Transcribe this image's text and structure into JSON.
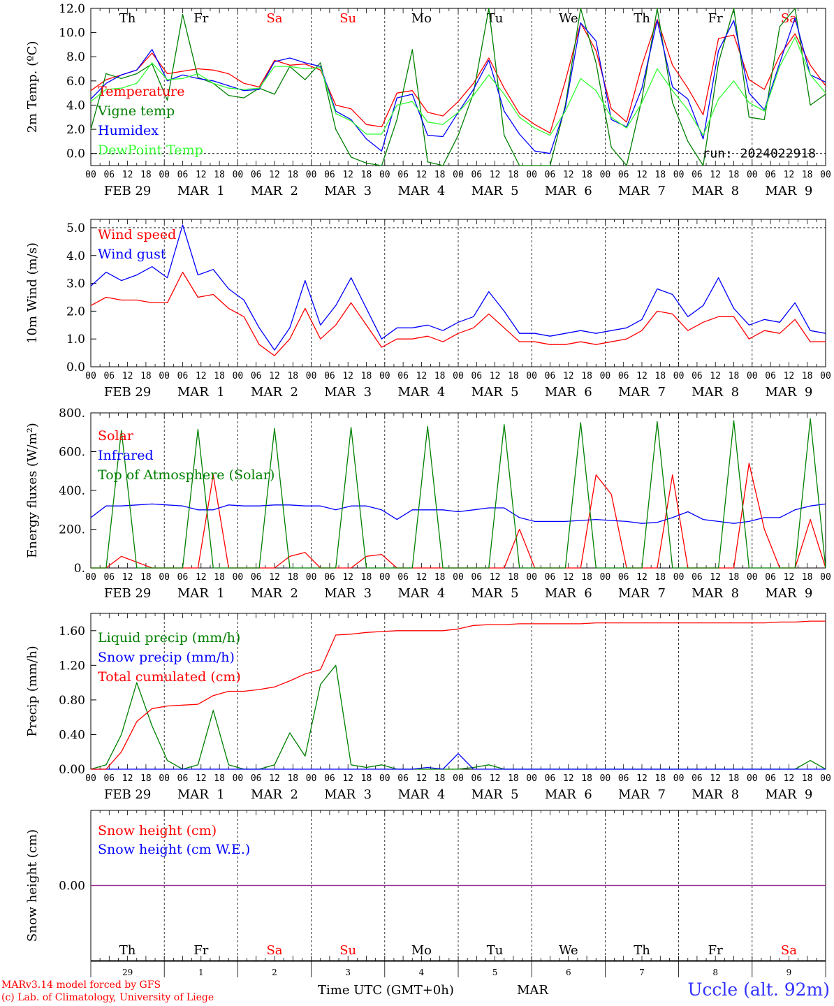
{
  "x_axis": {
    "hour_ticks": [
      "00",
      "06",
      "12",
      "18"
    ],
    "end_tick": "00",
    "date_labels": [
      "FEB 29",
      "MAR  1",
      "MAR  2",
      "MAR  3",
      "MAR  4",
      "MAR  5",
      "MAR  6",
      "MAR  7",
      "MAR  8",
      "MAR  9"
    ],
    "weekdays": [
      "Th",
      "Fr",
      "Sa",
      "Su",
      "Mo",
      "Tu",
      "We",
      "Th",
      "Fr",
      "Sa"
    ],
    "weekday_colors": [
      "#000000",
      "#000000",
      "#ff0000",
      "#ff0000",
      "#000000",
      "#000000",
      "#000000",
      "#000000",
      "#000000",
      "#ff0000"
    ],
    "bottom_day_numbers": [
      "29",
      "1",
      "2",
      "3",
      "4",
      "5",
      "6",
      "7",
      "8",
      "9"
    ],
    "bottom_month": "MAR",
    "time_label": "Time UTC (GMT+0h)"
  },
  "footer": {
    "model_line": "MARv3.14 model forced by GFS",
    "credit_line": "(c) Lab. of Climatology, University of Liege",
    "station": "Uccle (alt. 92m)"
  },
  "chart_data": [
    {
      "id": "temperature",
      "type": "line",
      "ylabel": "2m Temp. (ºC)",
      "ylim": [
        -1.0,
        12.0
      ],
      "yticks": [
        "0.0",
        "2.0",
        "4.0",
        "6.0",
        "8.0",
        "10.0",
        "12.0"
      ],
      "ytick_values": [
        0,
        2,
        4,
        6,
        8,
        10,
        12
      ],
      "run_label": "run: 2024022918",
      "dashed_ref": 0,
      "x_hours_step": 6,
      "series": [
        {
          "name": "Temperature",
          "color": "#ff0000",
          "values": [
            5.2,
            6.1,
            6.5,
            6.9,
            8.3,
            6.6,
            6.8,
            7.0,
            6.9,
            6.6,
            5.8,
            5.5,
            7.7,
            7.3,
            7.4,
            6.9,
            4.0,
            3.7,
            2.4,
            2.2,
            5.0,
            5.2,
            3.4,
            3.1,
            4.3,
            5.8,
            7.9,
            5.4,
            3.3,
            2.4,
            1.7,
            6.0,
            10.8,
            8.5,
            3.7,
            2.6,
            7.3,
            11.1,
            7.3,
            5.4,
            3.2,
            9.5,
            9.8,
            6.1,
            5.3,
            8.1,
            9.9,
            7.3,
            5.6
          ]
        },
        {
          "name": "Vigne temp",
          "color": "#008000",
          "values": [
            2.0,
            6.6,
            6.2,
            6.6,
            7.4,
            4.4,
            11.5,
            6.3,
            5.8,
            4.8,
            4.6,
            5.4,
            4.9,
            7.2,
            6.1,
            7.5,
            2.0,
            -0.3,
            -0.8,
            -1.0,
            2.8,
            8.6,
            -0.7,
            -1.0,
            1.5,
            5.0,
            12.0,
            1.5,
            -1.0,
            -1.0,
            -1.0,
            4.0,
            12.0,
            7.5,
            0.5,
            -1.0,
            4.5,
            12.0,
            4.2,
            1.0,
            -1.0,
            7.5,
            12.0,
            3.0,
            2.8,
            10.5,
            12.0,
            4.0,
            4.9
          ]
        },
        {
          "name": "Humidex",
          "color": "#0000ff",
          "values": [
            4.5,
            5.8,
            6.5,
            6.9,
            8.6,
            6.0,
            6.5,
            6.2,
            6.0,
            5.6,
            5.2,
            5.3,
            7.6,
            7.9,
            7.5,
            7.2,
            3.5,
            2.8,
            1.2,
            0.2,
            4.6,
            4.9,
            1.5,
            1.4,
            3.4,
            5.3,
            7.7,
            3.5,
            1.6,
            0.2,
            0.0,
            3.8,
            10.8,
            9.3,
            2.8,
            2.2,
            5.4,
            11.0,
            5.5,
            4.5,
            1.2,
            8.5,
            11.0,
            5.0,
            3.6,
            7.5,
            11.2,
            6.5,
            5.9
          ]
        },
        {
          "name": "DewPoint Temp",
          "color": "#33ff33",
          "values": [
            4.3,
            5.3,
            5.4,
            5.8,
            7.5,
            6.1,
            6.2,
            6.6,
            5.8,
            5.4,
            5.3,
            5.4,
            7.2,
            7.2,
            7.0,
            7.1,
            3.3,
            2.7,
            1.6,
            1.6,
            4.0,
            4.3,
            2.6,
            2.4,
            3.4,
            4.8,
            6.5,
            4.9,
            3.0,
            2.1,
            1.5,
            3.5,
            6.2,
            5.2,
            3.0,
            2.1,
            4.2,
            7.0,
            5.2,
            3.6,
            1.5,
            4.5,
            6.0,
            4.2,
            3.5,
            7.2,
            9.6,
            6.5,
            5.0
          ]
        }
      ]
    },
    {
      "id": "wind",
      "type": "line",
      "ylabel": "10m Wind (m/s)",
      "ylim": [
        0.0,
        5.3
      ],
      "yticks": [
        "0.0",
        "1.0",
        "2.0",
        "3.0",
        "4.0",
        "5.0"
      ],
      "ytick_values": [
        0,
        1,
        2,
        3,
        4,
        5
      ],
      "dashed_ref": 5,
      "x_hours_step": 6,
      "series": [
        {
          "name": "Wind speed",
          "color": "#ff0000",
          "values": [
            2.2,
            2.5,
            2.4,
            2.4,
            2.3,
            2.3,
            3.4,
            2.5,
            2.6,
            2.1,
            1.8,
            0.8,
            0.4,
            1.0,
            2.1,
            1.0,
            1.5,
            2.3,
            1.5,
            0.7,
            1.0,
            1.0,
            1.1,
            0.9,
            1.2,
            1.4,
            1.9,
            1.4,
            0.9,
            0.9,
            0.8,
            0.8,
            0.9,
            0.8,
            0.9,
            1.0,
            1.3,
            2.0,
            1.9,
            1.3,
            1.6,
            1.8,
            1.8,
            1.0,
            1.3,
            1.2,
            1.7,
            0.9,
            0.9
          ]
        },
        {
          "name": "Wind gust",
          "color": "#0000ff",
          "values": [
            2.9,
            3.4,
            3.1,
            3.3,
            3.6,
            3.2,
            5.1,
            3.3,
            3.5,
            2.8,
            2.4,
            1.4,
            0.6,
            1.4,
            3.1,
            1.5,
            2.2,
            3.2,
            2.1,
            1.0,
            1.4,
            1.4,
            1.5,
            1.3,
            1.6,
            1.8,
            2.7,
            2.0,
            1.2,
            1.2,
            1.1,
            1.2,
            1.3,
            1.2,
            1.3,
            1.4,
            1.7,
            2.8,
            2.6,
            1.8,
            2.2,
            3.2,
            2.1,
            1.5,
            1.7,
            1.6,
            2.3,
            1.3,
            1.2
          ]
        }
      ]
    },
    {
      "id": "radiation",
      "type": "line",
      "ylabel": "Energy fluxes (W/m²)",
      "ylim": [
        0,
        800
      ],
      "yticks": [
        "0.",
        "200.",
        "400.",
        "600.",
        "800."
      ],
      "ytick_values": [
        0,
        200,
        400,
        600,
        800
      ],
      "x_hours_step": 6,
      "series": [
        {
          "name": "Solar",
          "color": "#ff0000",
          "values": [
            0,
            0,
            60,
            30,
            0,
            0,
            0,
            0,
            480,
            0,
            0,
            0,
            0,
            60,
            80,
            0,
            0,
            0,
            60,
            70,
            0,
            0,
            0,
            0,
            0,
            0,
            0,
            0,
            200,
            0,
            0,
            0,
            0,
            480,
            380,
            0,
            0,
            0,
            480,
            0,
            0,
            0,
            0,
            540,
            200,
            0,
            0,
            250,
            0
          ]
        },
        {
          "name": "Infrared",
          "color": "#0000ff",
          "values": [
            260,
            320,
            320,
            325,
            330,
            325,
            320,
            300,
            300,
            325,
            320,
            320,
            325,
            325,
            320,
            320,
            300,
            320,
            320,
            300,
            250,
            300,
            300,
            300,
            290,
            300,
            310,
            310,
            260,
            240,
            240,
            240,
            245,
            250,
            245,
            240,
            230,
            235,
            260,
            290,
            250,
            240,
            230,
            240,
            260,
            260,
            300,
            320,
            330
          ]
        },
        {
          "name": "Top of Atmosphere (Solar)",
          "color": "#008000",
          "values": [
            0,
            0,
            710,
            0,
            0,
            0,
            0,
            715,
            0,
            0,
            0,
            0,
            720,
            0,
            0,
            0,
            0,
            725,
            0,
            0,
            0,
            0,
            730,
            0,
            0,
            0,
            0,
            740,
            0,
            0,
            0,
            0,
            750,
            0,
            0,
            0,
            0,
            755,
            0,
            0,
            0,
            0,
            760,
            0,
            0,
            0,
            0,
            770,
            0
          ]
        }
      ]
    },
    {
      "id": "precip",
      "type": "line",
      "ylabel": "Precip (mm/h)",
      "ylim": [
        0.0,
        1.8
      ],
      "yticks": [
        "0.00",
        "0.40",
        "0.80",
        "1.20",
        "1.60"
      ],
      "ytick_values": [
        0,
        0.4,
        0.8,
        1.2,
        1.6
      ],
      "x_hours_step": 6,
      "series": [
        {
          "name": "Liquid precip (mm/h)",
          "color": "#008000",
          "values": [
            0,
            0.05,
            0.4,
            1.0,
            0.5,
            0.1,
            0,
            0.05,
            0.68,
            0.05,
            0,
            0,
            0.05,
            0.42,
            0.15,
            0.98,
            1.2,
            0.05,
            0.02,
            0.05,
            0,
            0,
            0,
            0,
            0,
            0.02,
            0.05,
            0,
            0,
            0,
            0,
            0,
            0,
            0,
            0,
            0,
            0,
            0,
            0,
            0,
            0,
            0,
            0,
            0,
            0,
            0,
            0,
            0.1,
            0
          ]
        },
        {
          "name": "Snow precip (mm/h)",
          "color": "#0000ff",
          "values": [
            0,
            0,
            0,
            0,
            0,
            0,
            0,
            0,
            0,
            0,
            0,
            0,
            0,
            0,
            0,
            0,
            0,
            0,
            0,
            0,
            0,
            0,
            0.02,
            0,
            0.18,
            0,
            0,
            0,
            0,
            0,
            0,
            0,
            0,
            0,
            0,
            0,
            0,
            0,
            0,
            0,
            0,
            0,
            0,
            0,
            0,
            0,
            0,
            0,
            0
          ]
        },
        {
          "name": "Total cumulated (cm)",
          "color": "#ff0000",
          "values": [
            0,
            0,
            0.2,
            0.55,
            0.7,
            0.73,
            0.74,
            0.75,
            0.85,
            0.9,
            0.9,
            0.92,
            0.95,
            1.02,
            1.1,
            1.15,
            1.55,
            1.56,
            1.58,
            1.59,
            1.6,
            1.6,
            1.6,
            1.6,
            1.62,
            1.66,
            1.67,
            1.67,
            1.68,
            1.68,
            1.68,
            1.68,
            1.68,
            1.69,
            1.69,
            1.69,
            1.69,
            1.69,
            1.69,
            1.69,
            1.69,
            1.69,
            1.69,
            1.69,
            1.69,
            1.7,
            1.7,
            1.71,
            1.71
          ]
        }
      ]
    },
    {
      "id": "snow",
      "type": "line",
      "ylabel": "Snow height (cm)",
      "ylim": [
        -1,
        1
      ],
      "yticks": [
        "0.00"
      ],
      "ytick_values": [
        0
      ],
      "x_hours_step": 6,
      "series": [
        {
          "name": "Snow height (cm)",
          "color": "#ff0000",
          "values": [
            0,
            0
          ]
        },
        {
          "name": "Snow height (cm W.E.)",
          "color": "#0000ff",
          "values": [
            0,
            0
          ]
        }
      ],
      "zero_line_color": "#993399"
    }
  ]
}
